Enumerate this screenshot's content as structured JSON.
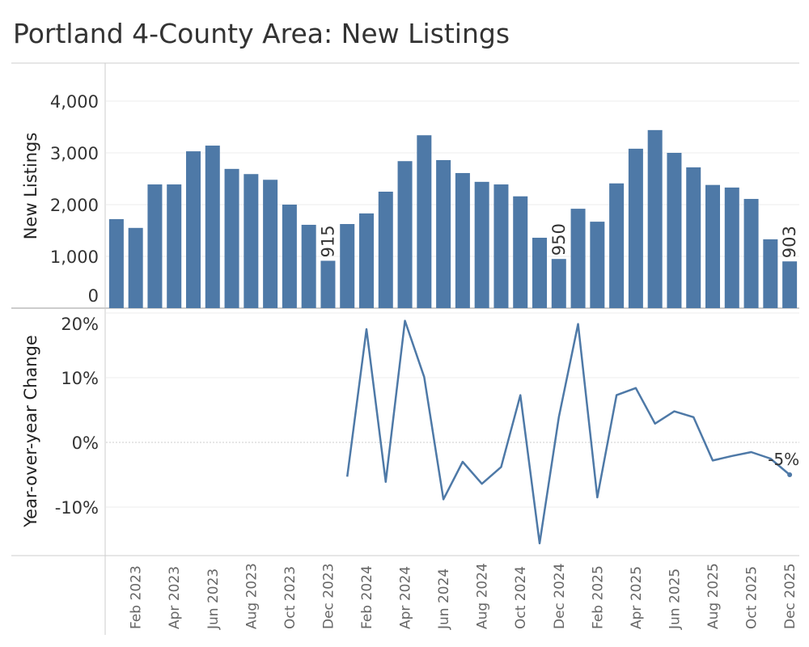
{
  "title": "Portland 4-County Area: New Listings",
  "chart_data": [
    {
      "type": "bar",
      "title": "Portland 4-County Area: New Listings",
      "ylabel": "New Listings",
      "ylim": [
        0,
        4500
      ],
      "yticks": [
        0,
        1000,
        2000,
        3000,
        4000
      ],
      "ytick_labels": [
        "0",
        "1,000",
        "2,000",
        "3,000",
        "4,000"
      ],
      "color": "#4e79a7",
      "categories": [
        "Jan 2023",
        "Feb 2023",
        "Mar 2023",
        "Apr 2023",
        "May 2023",
        "Jun 2023",
        "Jul 2023",
        "Aug 2023",
        "Sep 2023",
        "Oct 2023",
        "Nov 2023",
        "Dec 2023",
        "Jan 2024",
        "Feb 2024",
        "Mar 2024",
        "Apr 2024",
        "May 2024",
        "Jun 2024",
        "Jul 2024",
        "Aug 2024",
        "Sep 2024",
        "Oct 2024",
        "Nov 2024",
        "Dec 2024",
        "Jan 2025",
        "Feb 2025",
        "Mar 2025",
        "Apr 2025",
        "May 2025",
        "Jun 2025",
        "Jul 2025",
        "Aug 2025",
        "Sep 2025",
        "Oct 2025",
        "Nov 2025",
        "Dec 2025"
      ],
      "values": [
        1720,
        1550,
        2390,
        2390,
        3030,
        3140,
        2690,
        2590,
        2480,
        2000,
        1610,
        915,
        1625,
        1830,
        2250,
        2840,
        3340,
        2860,
        2610,
        2440,
        2390,
        2160,
        1360,
        950,
        1920,
        1670,
        2410,
        3080,
        3440,
        3000,
        2720,
        2380,
        2330,
        2110,
        1330,
        903
      ],
      "data_labels": {
        "11": "915",
        "23": "950",
        "35": "903"
      }
    },
    {
      "type": "line",
      "ylabel": "Year-over-year Change",
      "ylim": [
        -18,
        22
      ],
      "yticks": [
        -10,
        0,
        10,
        20
      ],
      "ytick_labels": [
        "-10%",
        "0%",
        "10%",
        "20%"
      ],
      "color": "#4e79a7",
      "start_index": 12,
      "values": [
        -5.3,
        17.5,
        -6.1,
        18.8,
        10.1,
        -8.8,
        -3.0,
        -6.4,
        -3.8,
        7.3,
        -15.6,
        3.9,
        18.3,
        -8.5,
        7.3,
        8.4,
        2.9,
        4.8,
        3.9,
        -2.8,
        -2.1,
        -1.5,
        -2.5,
        -5.0
      ],
      "end_label": "-5%"
    }
  ],
  "xtick_labels": [
    "Feb 2023",
    "Apr 2023",
    "Jun 2023",
    "Aug 2023",
    "Oct 2023",
    "Dec 2023",
    "Feb 2024",
    "Apr 2024",
    "Jun 2024",
    "Aug 2024",
    "Oct 2024",
    "Dec 2024",
    "Feb 2025",
    "Apr 2025",
    "Jun 2025",
    "Aug 2025",
    "Oct 2025",
    "Dec 2025"
  ]
}
